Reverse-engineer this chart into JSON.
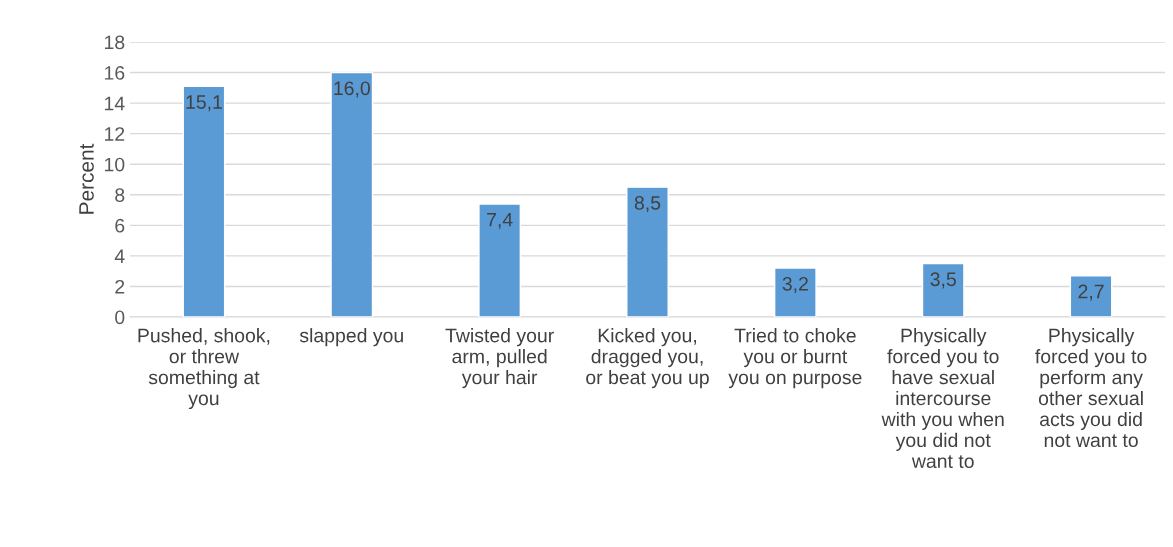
{
  "chart_data": {
    "type": "bar",
    "ylabel": "Percent",
    "categories": [
      "Pushed, shook, or threw something at you",
      "slapped you",
      "Twisted your arm, pulled your hair",
      "Kicked you, dragged you, or beat you up",
      "Tried to choke you or burnt you on purpose",
      "Physically forced you to have sexual intercourse with you when you did not want to",
      "Physically forced you to perform any other sexual acts you did not want to"
    ],
    "values": [
      15.1,
      16.0,
      7.4,
      8.5,
      3.2,
      3.5,
      2.7
    ],
    "value_labels": [
      "15,1",
      "16,0",
      "7,4",
      "8,5",
      "3,2",
      "3,5",
      "2,7"
    ],
    "color": "#5b9bd5",
    "ylim": [
      0,
      18
    ],
    "yticks": [
      0,
      2,
      4,
      6,
      8,
      10,
      12,
      14,
      16,
      18
    ],
    "grid": "y"
  }
}
